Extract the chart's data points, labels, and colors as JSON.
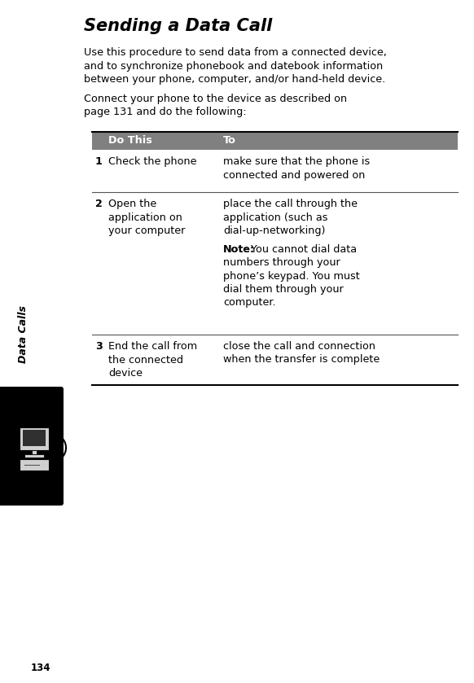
{
  "page_number": "134",
  "title": "Sending a Data Call",
  "intro_line1": "Use this procedure to send data from a connected device,",
  "intro_line2": "and to synchronize phonebook and datebook information",
  "intro_line3": "between your phone, computer, and/or hand-held device.",
  "connect_line1": "Connect your phone to the device as described on",
  "connect_line2": "page 131 and do the following:",
  "sidebar_text": "Data Calls",
  "table_header_col1": "Do This",
  "table_header_col2": "To",
  "table_header_bg": "#808080",
  "table_header_text_color": "#ffffff",
  "row1_num": "1",
  "row1_col1_line1": "Check the phone",
  "row1_col2_line1": "make sure that the phone is",
  "row1_col2_line2": "connected and powered on",
  "row2_num": "2",
  "row2_col1_line1": "Open the",
  "row2_col1_line2": "application on",
  "row2_col1_line3": "your computer",
  "row2_col2_line1": "place the call through the",
  "row2_col2_line2": "application (such as",
  "row2_col2_line3": "dial-up-networking)",
  "note_bold": "Note:",
  "note_rest": " You cannot dial data numbers through your phone’s keypad. You must dial them through your computer.",
  "note_line1": "Note: You cannot dial data",
  "note_line2": "numbers through your",
  "note_line3": "phone’s keypad. You must",
  "note_line4": "dial them through your",
  "note_line5": "computer.",
  "row3_num": "3",
  "row3_col1_line1": "End the call from",
  "row3_col1_line2": "the connected",
  "row3_col1_line3": "device",
  "row3_col2_line1": "close the call and connection",
  "row3_col2_line2": "when the transfer is complete",
  "bg_color": "#ffffff",
  "text_color": "#000000",
  "sidebar_bg": "#000000",
  "sidebar_text_color": "#ffffff",
  "table_line_color": "#555555"
}
